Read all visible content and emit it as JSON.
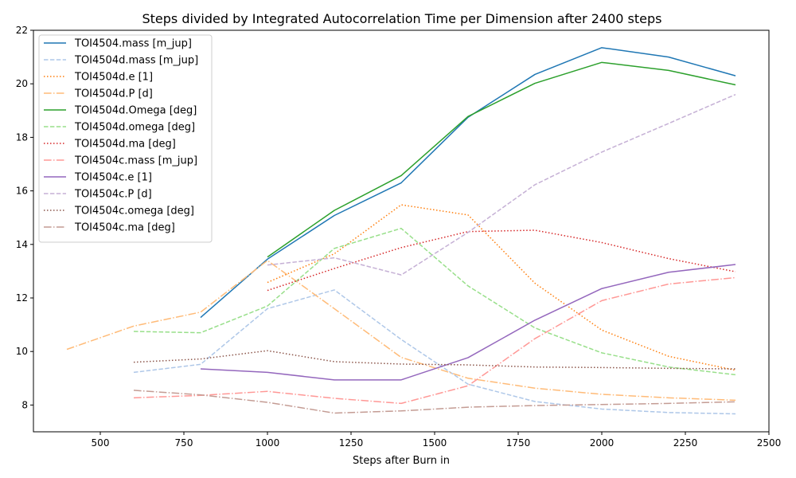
{
  "chart_data": {
    "type": "line",
    "title": "Steps divided by Integrated Autocorrelation Time per Dimension after 2400 steps",
    "xlabel": "Steps after Burn in",
    "ylabel": "",
    "xlim": [
      300,
      2500
    ],
    "ylim": [
      7,
      22
    ],
    "xticks": [
      500,
      750,
      1000,
      1250,
      1500,
      1750,
      2000,
      2250,
      2500
    ],
    "yticks": [
      8,
      10,
      12,
      14,
      16,
      18,
      20,
      22
    ],
    "grid": false,
    "legend_position": "top-left",
    "series": [
      {
        "name": "TOI4504.mass [m_jup]",
        "color": "#1f77b4",
        "dash": "solid",
        "x": [
          800,
          1000,
          1200,
          1400,
          1600,
          1800,
          2000,
          2200,
          2400
        ],
        "y": [
          11.27,
          13.45,
          15.08,
          16.3,
          18.75,
          20.35,
          21.35,
          21.0,
          20.3
        ]
      },
      {
        "name": "TOI4504d.mass [m_jup]",
        "color": "#aec7e8",
        "dash": "dashed",
        "x": [
          600,
          800,
          1000,
          1200,
          1400,
          1600,
          1800,
          2000,
          2200,
          2400
        ],
        "y": [
          9.22,
          9.52,
          11.6,
          12.3,
          10.45,
          8.78,
          8.13,
          7.85,
          7.72,
          7.67
        ]
      },
      {
        "name": "TOI4504d.e [1]",
        "color": "#ff7f0e",
        "dash": "dotted",
        "x": [
          1000,
          1200,
          1400,
          1600,
          1800,
          2000,
          2200,
          2400
        ],
        "y": [
          12.58,
          13.65,
          15.48,
          15.1,
          12.55,
          10.8,
          9.82,
          9.3
        ]
      },
      {
        "name": "TOI4504d.P [d]",
        "color": "#ffbb78",
        "dash": "dashdot",
        "x": [
          400,
          600,
          800,
          1000,
          1200,
          1400,
          1600,
          1800,
          2000,
          2200,
          2400
        ],
        "y": [
          10.08,
          10.95,
          11.47,
          13.4,
          11.6,
          9.78,
          9.0,
          8.63,
          8.4,
          8.27,
          8.18
        ]
      },
      {
        "name": "TOI4504d.Omega [deg]",
        "color": "#2ca02c",
        "dash": "solid",
        "x": [
          1000,
          1200,
          1400,
          1600,
          1800,
          2000,
          2200,
          2400
        ],
        "y": [
          13.53,
          15.27,
          16.57,
          18.78,
          20.02,
          20.8,
          20.5,
          19.96
        ]
      },
      {
        "name": "TOI4504d.omega [deg]",
        "color": "#98df8a",
        "dash": "dashed",
        "x": [
          600,
          800,
          1000,
          1200,
          1400,
          1600,
          1800,
          2000,
          2200,
          2400
        ],
        "y": [
          10.75,
          10.7,
          11.7,
          13.85,
          14.6,
          12.45,
          10.88,
          9.95,
          9.42,
          9.13
        ]
      },
      {
        "name": "TOI4504d.ma [deg]",
        "color": "#d62728",
        "dash": "dotted",
        "x": [
          1000,
          1200,
          1400,
          1600,
          1800,
          2000,
          2200,
          2400
        ],
        "y": [
          12.28,
          13.1,
          13.88,
          14.48,
          14.53,
          14.07,
          13.47,
          12.98
        ]
      },
      {
        "name": "TOI4504c.mass [m_jup]",
        "color": "#ff9896",
        "dash": "dashdot",
        "x": [
          600,
          800,
          1000,
          1200,
          1400,
          1600,
          1800,
          2000,
          2200,
          2400
        ],
        "y": [
          8.27,
          8.36,
          8.51,
          8.25,
          8.06,
          8.72,
          10.48,
          11.9,
          12.52,
          12.76
        ]
      },
      {
        "name": "TOI4504c.e [1]",
        "color": "#9467bd",
        "dash": "solid",
        "x": [
          800,
          1000,
          1200,
          1400,
          1600,
          1800,
          2000,
          2200,
          2400
        ],
        "y": [
          9.35,
          9.22,
          8.94,
          8.94,
          9.77,
          11.17,
          12.35,
          12.96,
          13.25
        ]
      },
      {
        "name": "TOI4504c.P [d]",
        "color": "#c5b0d5",
        "dash": "dashed",
        "x": [
          1000,
          1200,
          1400,
          1600,
          1800,
          2000,
          2200,
          2400
        ],
        "y": [
          13.23,
          13.5,
          12.86,
          14.45,
          16.23,
          17.45,
          18.52,
          19.6
        ]
      },
      {
        "name": "TOI4504c.omega [deg]",
        "color": "#8c564b",
        "dash": "dotted",
        "x": [
          600,
          800,
          1000,
          1200,
          1400,
          1600,
          1800,
          2000,
          2200,
          2400
        ],
        "y": [
          9.6,
          9.72,
          10.03,
          9.62,
          9.53,
          9.5,
          9.42,
          9.4,
          9.37,
          9.35
        ]
      },
      {
        "name": "TOI4504c.ma [deg]",
        "color": "#c49c94",
        "dash": "dashdot",
        "x": [
          600,
          800,
          1000,
          1200,
          1400,
          1600,
          1800,
          2000,
          2200,
          2400
        ],
        "y": [
          8.55,
          8.38,
          8.1,
          7.7,
          7.78,
          7.92,
          7.98,
          8.02,
          8.06,
          8.12
        ]
      }
    ]
  }
}
